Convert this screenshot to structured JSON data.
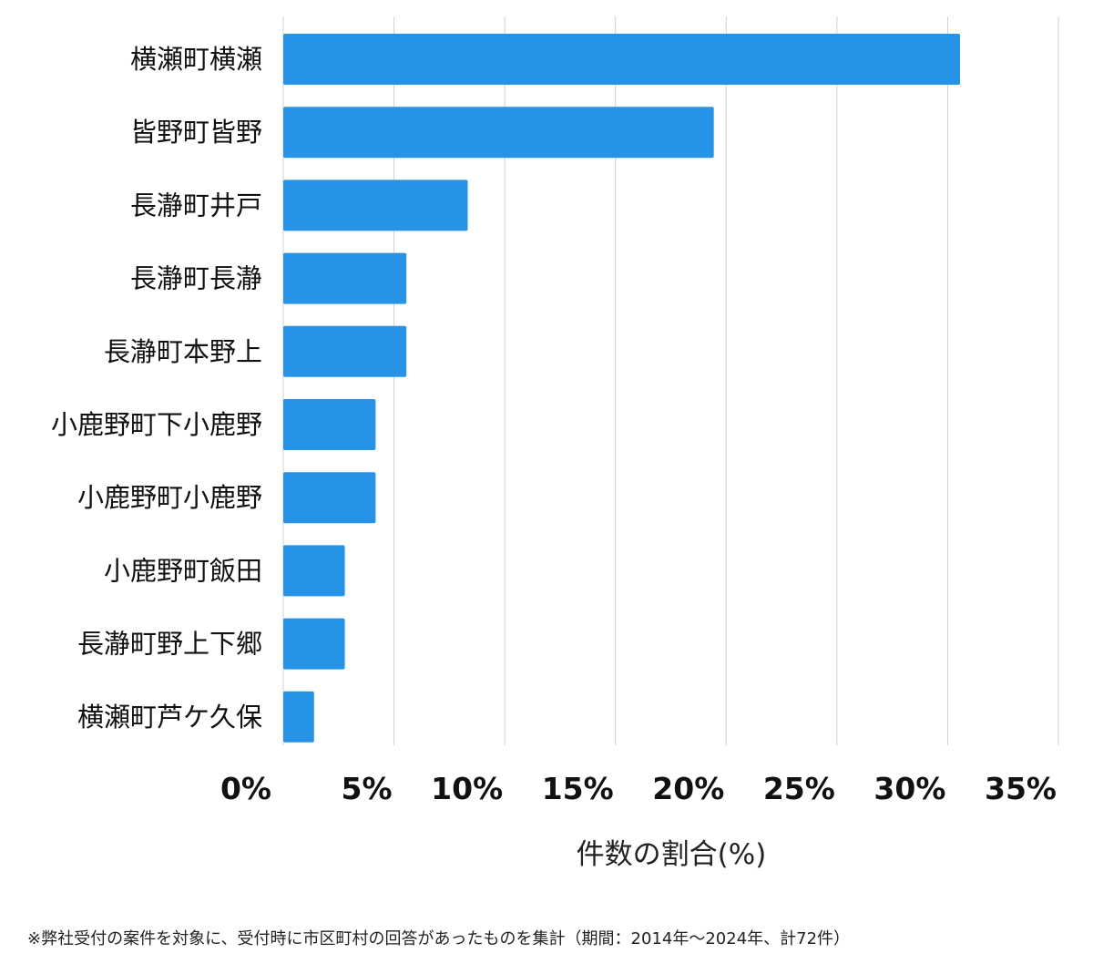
{
  "chart_data": {
    "type": "bar",
    "orientation": "horizontal",
    "categories": [
      "横瀬町横瀬",
      "皆野町皆野",
      "長瀞町井戸",
      "長瀞町長瀞",
      "長瀞町本野上",
      "小鹿野町下小鹿野",
      "小鹿野町小鹿野",
      "小鹿野町飯田",
      "長瀞町野上下郷",
      "横瀬町芦ケ久保"
    ],
    "values": [
      30.56,
      19.44,
      8.33,
      5.56,
      5.56,
      4.17,
      4.17,
      2.78,
      2.78,
      1.39
    ],
    "xlabel": "件数の割合(%)",
    "ylabel": "",
    "xlim": [
      0,
      35
    ],
    "xticks": [
      0,
      5,
      10,
      15,
      20,
      25,
      30,
      35
    ],
    "xtick_labels": [
      "0%",
      "5%",
      "10%",
      "15%",
      "20%",
      "25%",
      "30%",
      "35%"
    ],
    "grid": "vertical",
    "bar_color": "#2793e6",
    "grid_color": "#d0d0d0"
  },
  "footnote": "※弊社受付の案件を対象に、受付時に市区町村の回答があったものを集計（期間：2014年～2024年、計72件）"
}
